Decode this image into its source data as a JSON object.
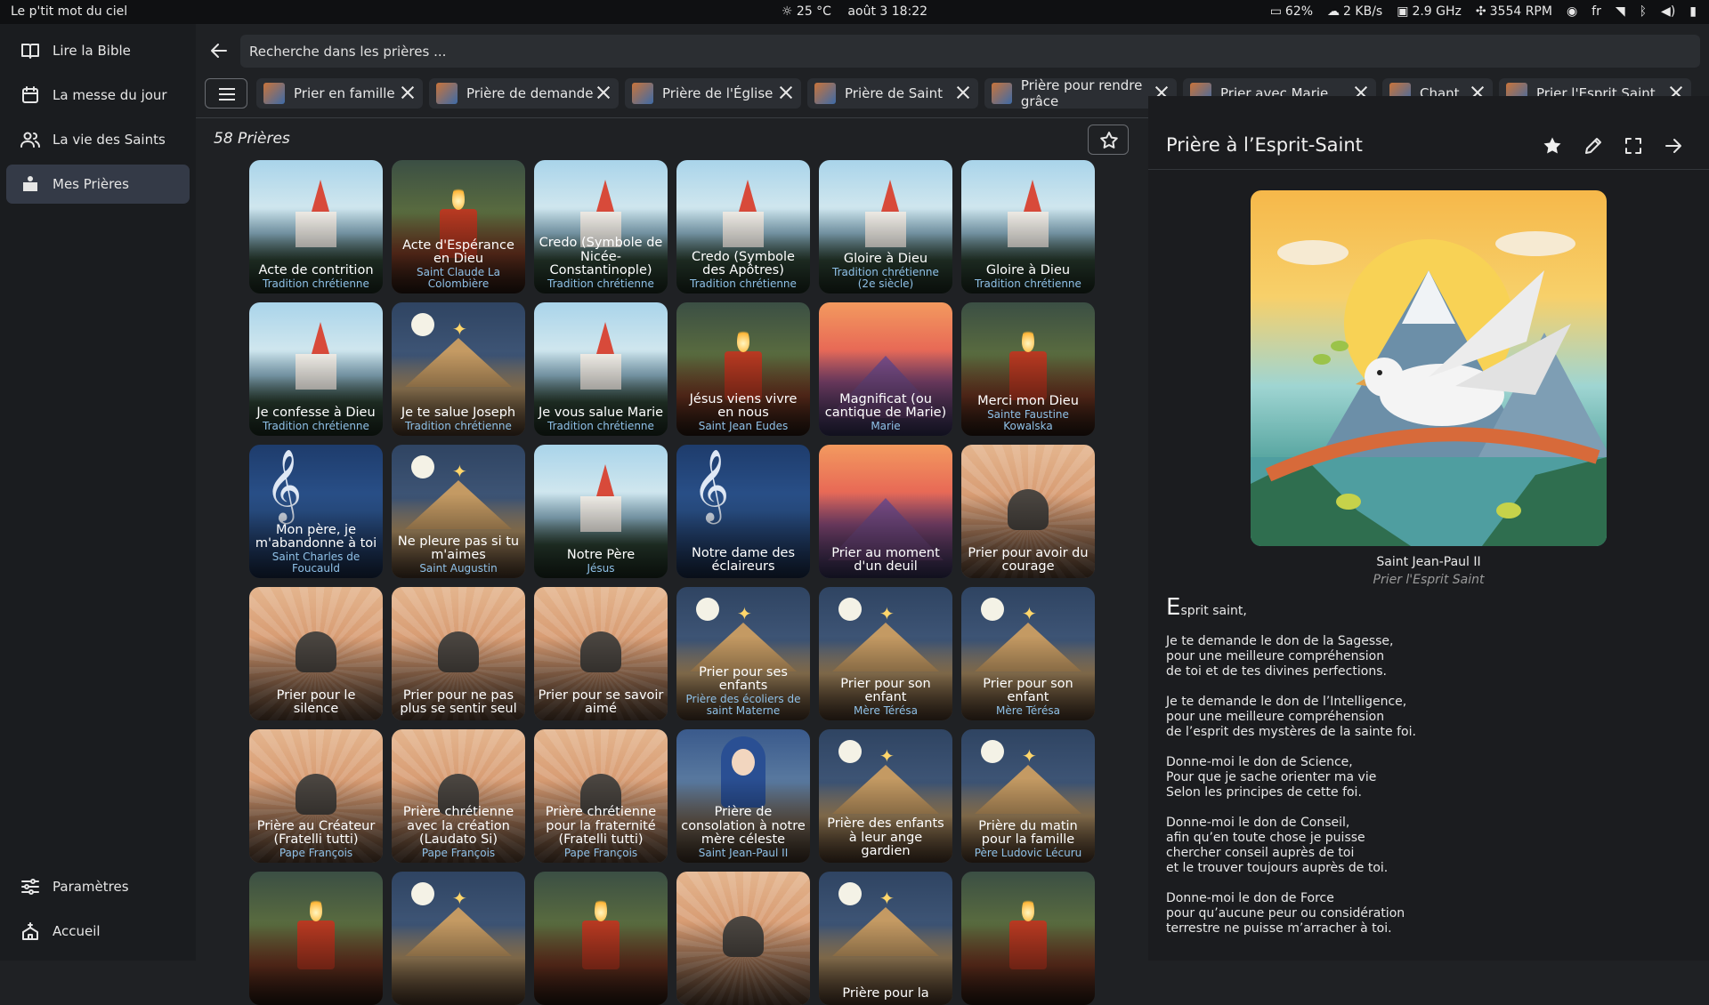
{
  "topbar": {
    "app_name": "Le p'tit mot du ciel",
    "weather": "25 °C",
    "datetime": "août 3  18:22",
    "battery": "62%",
    "network": "2 KB/s",
    "cpu": "2.9 GHz",
    "fan": "3554 RPM",
    "lang": "fr"
  },
  "sidebar": {
    "items": [
      {
        "label": "Lire la Bible",
        "icon": "book-icon"
      },
      {
        "label": "La messe du jour",
        "icon": "calendar-icon"
      },
      {
        "label": "La vie des Saints",
        "icon": "people-icon"
      },
      {
        "label": "Mes Prières",
        "icon": "prayer-icon"
      }
    ],
    "active_index": 3,
    "bottom": [
      {
        "label": "Paramètres",
        "icon": "settings-icon"
      },
      {
        "label": "Accueil",
        "icon": "home-icon"
      }
    ]
  },
  "search": {
    "placeholder": "Recherche dans les prières ..."
  },
  "chips": [
    {
      "label": "Prier en famille"
    },
    {
      "label": "Prière de demande"
    },
    {
      "label": "Prière de l'Église"
    },
    {
      "label": "Prière de Saint"
    },
    {
      "label": "Prière pour rendre grâce"
    },
    {
      "label": "Prier avec Marie"
    },
    {
      "label": "Chant"
    },
    {
      "label": "Prier l'Esprit Saint"
    }
  ],
  "count_label": "58 Prières",
  "prayers": [
    {
      "title": "Acte de contrition",
      "subtitle": "Tradition chrétienne",
      "art": "church"
    },
    {
      "title": "Acte d'Espérance en Dieu",
      "subtitle": "Saint Claude La Colombière",
      "art": "candle"
    },
    {
      "title": "Credo (Symbole de Nicée-Constantinople)",
      "subtitle": "Tradition chrétienne",
      "art": "church"
    },
    {
      "title": "Credo (Symbole des Apôtres)",
      "subtitle": "Tradition chrétienne",
      "art": "church"
    },
    {
      "title": "Gloire à Dieu",
      "subtitle": "Tradition chrétienne (2e siècle)",
      "art": "church"
    },
    {
      "title": "Gloire à Dieu",
      "subtitle": "Tradition chrétienne",
      "art": "church"
    },
    {
      "title": "Je confesse à Dieu",
      "subtitle": "Tradition chrétienne",
      "art": "church"
    },
    {
      "title": "Je te salue Joseph",
      "subtitle": "Tradition chrétienne",
      "art": "creche"
    },
    {
      "title": "Je vous salue Marie",
      "subtitle": "Tradition chrétienne",
      "art": "church"
    },
    {
      "title": "Jésus viens vivre en nous",
      "subtitle": "Saint Jean Eudes",
      "art": "candle"
    },
    {
      "title": "Magnificat (ou cantique de Marie)",
      "subtitle": "Marie",
      "art": "sunset"
    },
    {
      "title": "Merci mon Dieu",
      "subtitle": "Sainte Faustine Kowalska",
      "art": "candle"
    },
    {
      "title": "Mon père, je m'abandonne à toi",
      "subtitle": "Saint Charles de Foucauld",
      "art": "music"
    },
    {
      "title": "Ne pleure pas si tu m'aimes",
      "subtitle": "Saint Augustin",
      "art": "creche"
    },
    {
      "title": "Notre Père",
      "subtitle": "Jésus",
      "art": "church"
    },
    {
      "title": "Notre dame des éclaireurs",
      "subtitle": "",
      "art": "music"
    },
    {
      "title": "Prier au moment d'un deuil",
      "subtitle": "",
      "art": "sunset"
    },
    {
      "title": "Prier pour avoir du courage",
      "subtitle": "",
      "art": "hands"
    },
    {
      "title": "Prier pour le silence",
      "subtitle": "",
      "art": "hands"
    },
    {
      "title": "Prier pour ne pas plus se sentir seul",
      "subtitle": "",
      "art": "hands"
    },
    {
      "title": "Prier pour se savoir aimé",
      "subtitle": "",
      "art": "hands"
    },
    {
      "title": "Prier pour ses enfants",
      "subtitle": "Prière des écoliers de saint Materne",
      "art": "creche"
    },
    {
      "title": "Prier pour son enfant",
      "subtitle": "Mère Térésa",
      "art": "creche"
    },
    {
      "title": "Prier pour son enfant",
      "subtitle": "Mère Térésa",
      "art": "creche"
    },
    {
      "title": "Prière au Créateur (Fratelli tutti)",
      "subtitle": "Pape François",
      "art": "hands"
    },
    {
      "title": "Prière chrétienne avec la création (Laudato Si)",
      "subtitle": "Pape François",
      "art": "hands"
    },
    {
      "title": "Prière chrétienne pour la fraternité (Fratelli tutti)",
      "subtitle": "Pape François",
      "art": "hands"
    },
    {
      "title": "Prière de consolation à notre mère céleste",
      "subtitle": "Saint Jean-Paul II",
      "art": "marie"
    },
    {
      "title": "Prière des enfants à leur ange gardien",
      "subtitle": "",
      "art": "creche"
    },
    {
      "title": "Prière du matin pour la famille",
      "subtitle": "Père Ludovic Lécuru",
      "art": "creche"
    },
    {
      "title": "",
      "subtitle": "",
      "art": "candle"
    },
    {
      "title": "",
      "subtitle": "",
      "art": "creche"
    },
    {
      "title": "",
      "subtitle": "",
      "art": "candle"
    },
    {
      "title": "",
      "subtitle": "",
      "art": "hands"
    },
    {
      "title": "Prière pour la",
      "subtitle": "",
      "art": "creche"
    },
    {
      "title": "",
      "subtitle": "",
      "art": "candle"
    }
  ],
  "detail": {
    "title": "Prière à l’Esprit-Saint",
    "author": "Saint Jean-Paul II",
    "category": "Prier l'Esprit Saint",
    "dropcap": "E",
    "first_line": "sprit saint,",
    "body": "Je te demande le don de la Sagesse,\npour une meilleure compréhension\nde toi et de tes divines perfections.\n\nJe te demande le don de l’Intelligence,\npour une meilleure compréhension\nde l’esprit des mystères de la sainte foi.\n\nDonne-moi le don de Science,\nPour que je sache orienter ma vie\nSelon les principes de cette foi.\n\nDonne-moi le don de Conseil,\nafin qu’en toute chose je puisse\nchercher conseil auprès de toi\net le trouver toujours auprès de toi.\n\nDonne-moi le don de Force\npour qu’aucune peur ou considération\nterrestre ne puisse m’arracher à toi."
  }
}
